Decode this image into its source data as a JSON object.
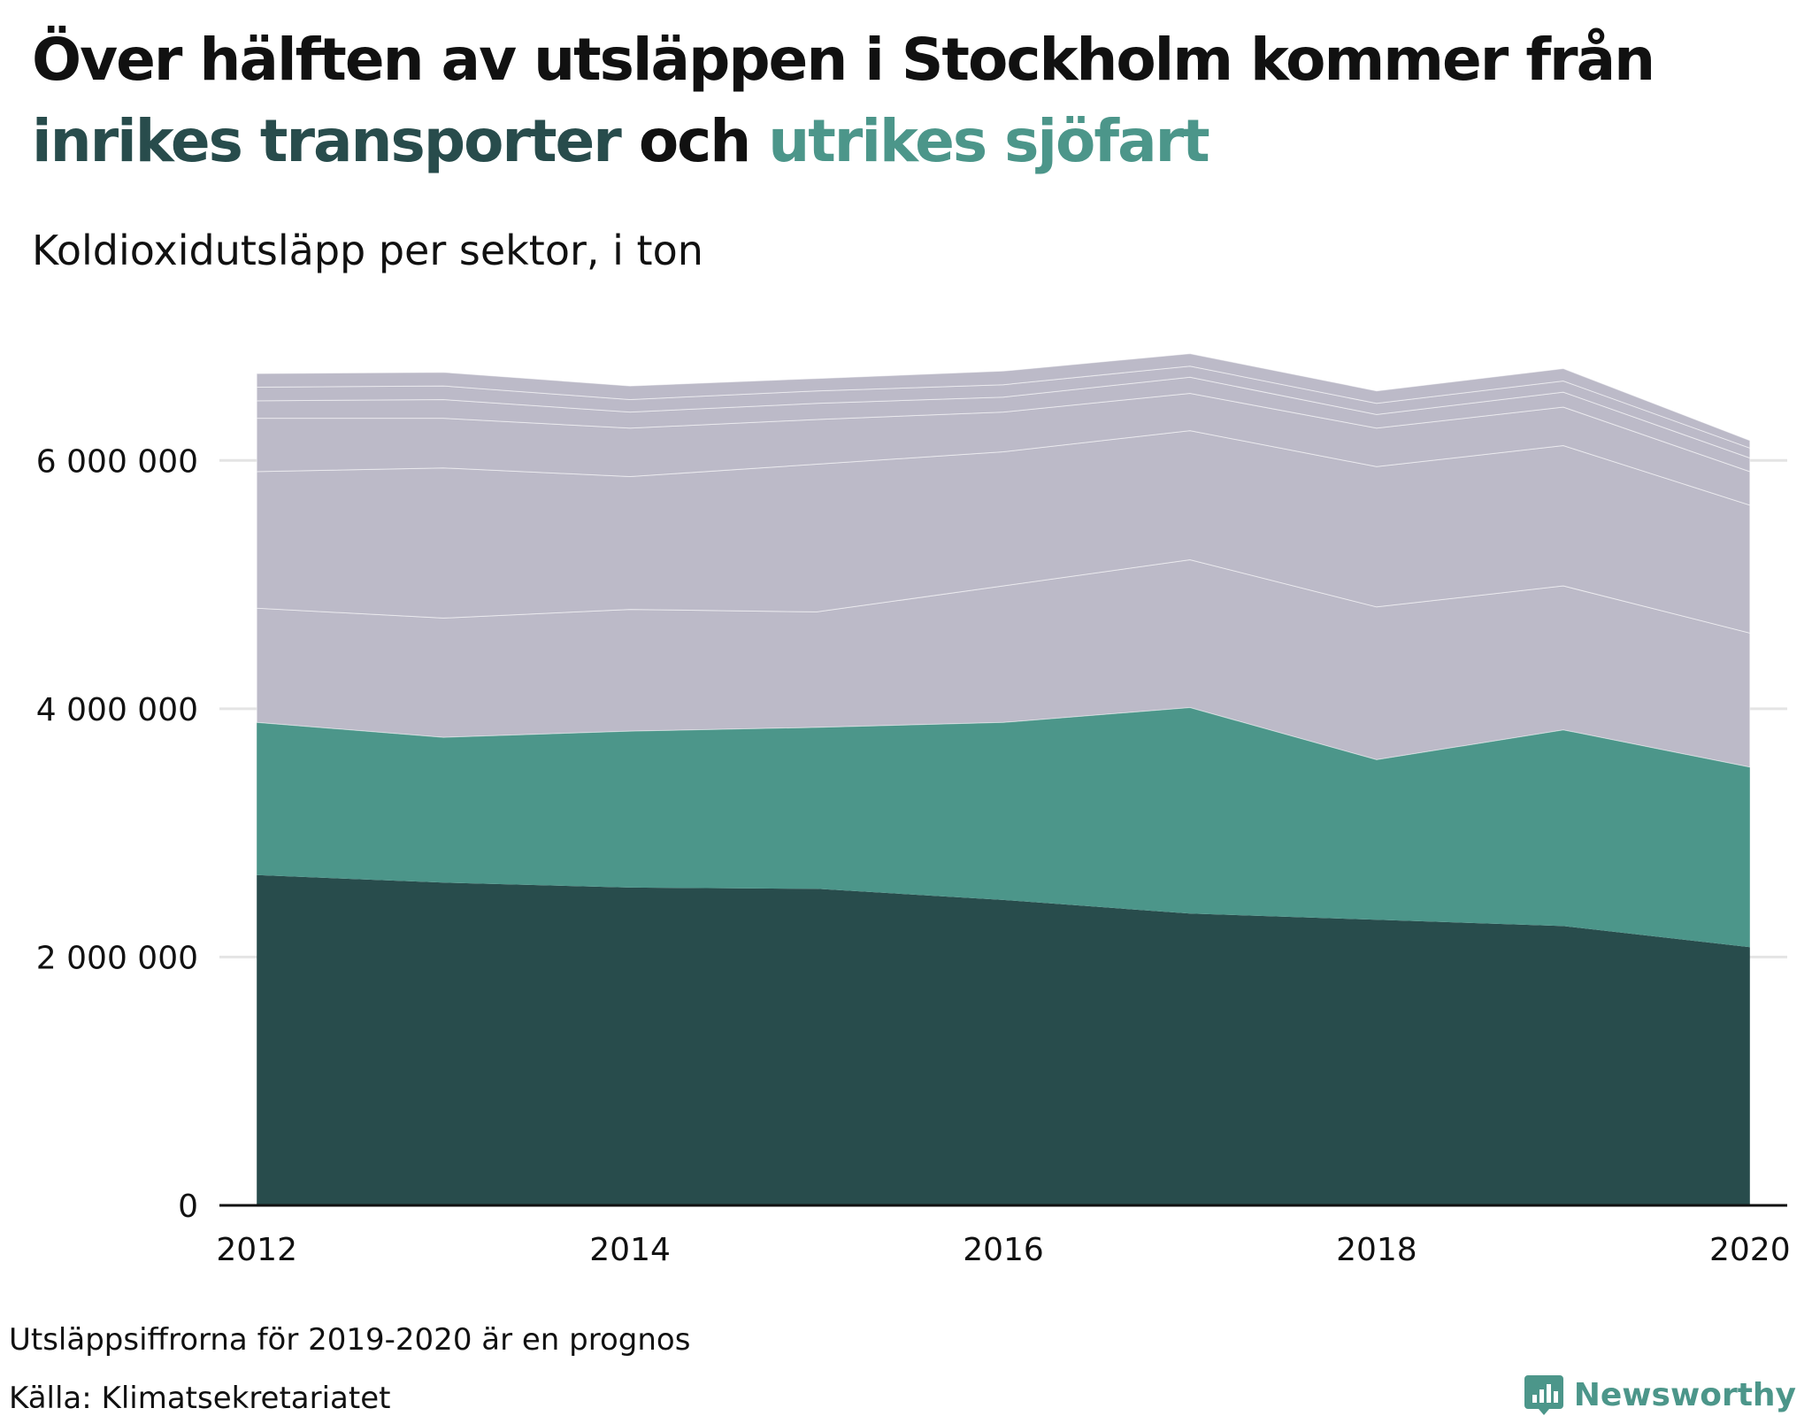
{
  "title": {
    "line1": "Över hälften av utsläppen i Stockholm kommer från",
    "highlight1": "inrikes transporter",
    "connector": " och ",
    "highlight2": "utrikes sjöfart"
  },
  "subtitle": "Koldioxidutsläpp per sektor, i ton",
  "notes": {
    "forecast": "Utsläppsiffrorna för 2019-2020 är en prognos",
    "source": "Källa: Klimatsekretariatet"
  },
  "brand": {
    "name": "Newsworthy",
    "icon": "newsworthy-logo-icon"
  },
  "colors": {
    "domestic_transport": "#284c4c",
    "international_shipping": "#4c968a",
    "other_sectors": "#bcbac8",
    "grid": "#e4e4e4",
    "axis": "#111111"
  },
  "chart_data": {
    "type": "area",
    "stacked": true,
    "x": [
      2012,
      2013,
      2014,
      2015,
      2016,
      2017,
      2018,
      2019,
      2020
    ],
    "xticks": [
      "2012",
      "2014",
      "2016",
      "2018",
      "2020"
    ],
    "xlim": [
      2011.8,
      2020.2
    ],
    "ylim": [
      0,
      7000000
    ],
    "yticks": [
      0,
      2000000,
      4000000,
      6000000
    ],
    "ytick_labels": [
      "0",
      "2 000 000",
      "4 000 000",
      "6 000 000"
    ],
    "grid": true,
    "series": [
      {
        "name": "inrikes transporter",
        "color": "#284c4c",
        "values": [
          2660000,
          2600000,
          2560000,
          2550000,
          2460000,
          2350000,
          2300000,
          2250000,
          2080000
        ]
      },
      {
        "name": "utrikes sjöfart",
        "color": "#4c968a",
        "values": [
          1230000,
          1170000,
          1260000,
          1300000,
          1430000,
          1660000,
          1290000,
          1580000,
          1450000
        ]
      },
      {
        "color": "#bcbac8",
        "values": [
          920000,
          960000,
          980000,
          930000,
          1100000,
          1190000,
          1230000,
          1160000,
          1080000
        ]
      },
      {
        "color": "#bcbac8",
        "values": [
          1100000,
          1210000,
          1070000,
          1190000,
          1080000,
          1040000,
          1130000,
          1130000,
          1030000
        ]
      },
      {
        "color": "#bcbac8",
        "values": [
          430000,
          400000,
          390000,
          360000,
          320000,
          300000,
          310000,
          310000,
          270000
        ]
      },
      {
        "color": "#bcbac8",
        "values": [
          140000,
          150000,
          130000,
          130000,
          120000,
          130000,
          110000,
          120000,
          110000
        ]
      },
      {
        "color": "#bcbac8",
        "values": [
          110000,
          110000,
          100000,
          100000,
          100000,
          90000,
          90000,
          90000,
          80000
        ]
      },
      {
        "color": "#bcbac8",
        "values": [
          110000,
          110000,
          110000,
          100000,
          110000,
          100000,
          100000,
          100000,
          60000
        ]
      }
    ]
  }
}
